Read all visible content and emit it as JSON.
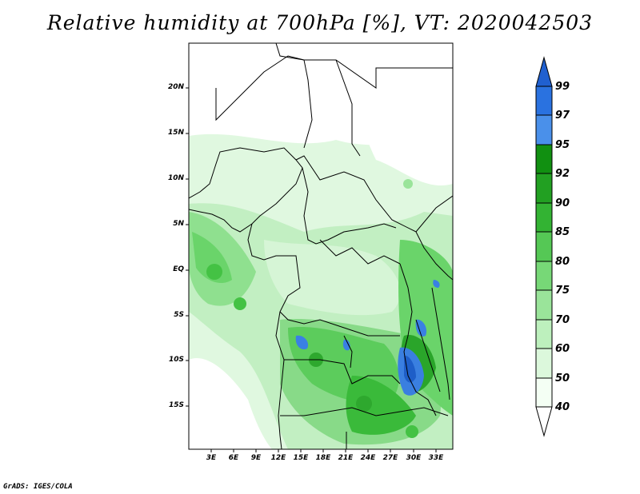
{
  "title": "Relative humidity at 700hPa [%], VT: 2020042503",
  "y_axis": {
    "ticks": [
      "20N",
      "15N",
      "10N",
      "5N",
      "EQ",
      "5S",
      "10S",
      "15S"
    ]
  },
  "x_axis": {
    "ticks": [
      "3E",
      "6E",
      "9E",
      "12E",
      "15E",
      "18E",
      "21E",
      "24E",
      "27E",
      "30E",
      "33E"
    ]
  },
  "colorbar": {
    "labels": [
      "99",
      "97",
      "95",
      "92",
      "90",
      "85",
      "80",
      "75",
      "70",
      "60",
      "50",
      "40"
    ],
    "colors": [
      "#2060d0",
      "#2a72e0",
      "#4a90ea",
      "#119011",
      "#22a022",
      "#33b333",
      "#55c855",
      "#77d877",
      "#9ae49a",
      "#bdf0bd",
      "#dcf8dc",
      "#f4fff4"
    ]
  },
  "credit": "GrADS: IGES/COLA"
}
